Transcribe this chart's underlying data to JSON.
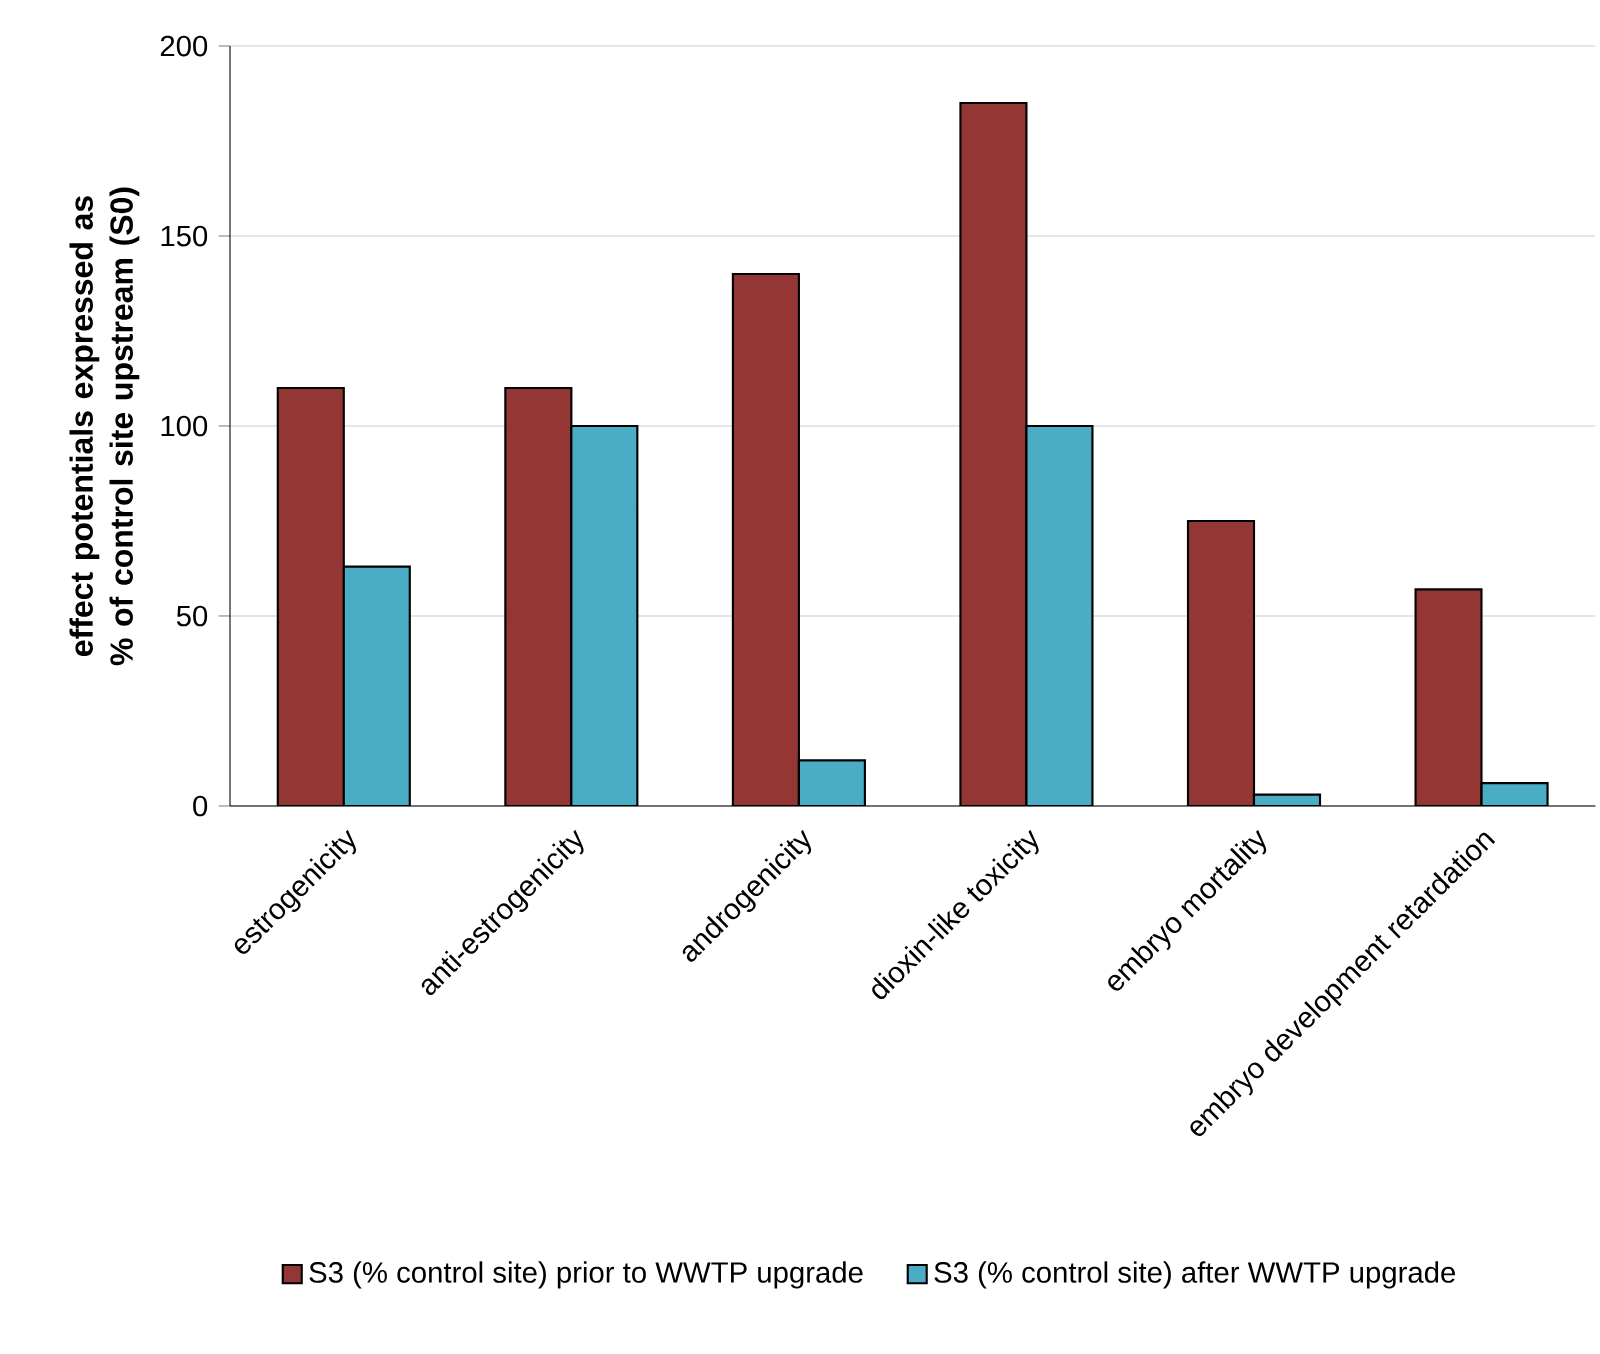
{
  "chart_data": {
    "type": "bar",
    "ylabel": "effect potentials expressed as % of control site upstream (S0)",
    "categories": [
      "estrogenicity",
      "anti-estrogenicity",
      "androgenicity",
      "dioxin-like toxicity",
      "embryo mortality",
      "embryo development retardation"
    ],
    "series": [
      {
        "name": "S3 (% control site) prior to WWTP upgrade",
        "color": "#943634",
        "values": [
          110,
          110,
          140,
          185,
          75,
          57
        ]
      },
      {
        "name": "S3 (% control site) after WWTP upgrade",
        "color": "#4bacc6",
        "values": [
          63,
          100,
          12,
          100,
          3,
          6
        ]
      }
    ],
    "ylim": [
      0,
      200
    ],
    "yticks": [
      0,
      50,
      100,
      150,
      200
    ],
    "grid": "y",
    "legend": "bottom"
  }
}
